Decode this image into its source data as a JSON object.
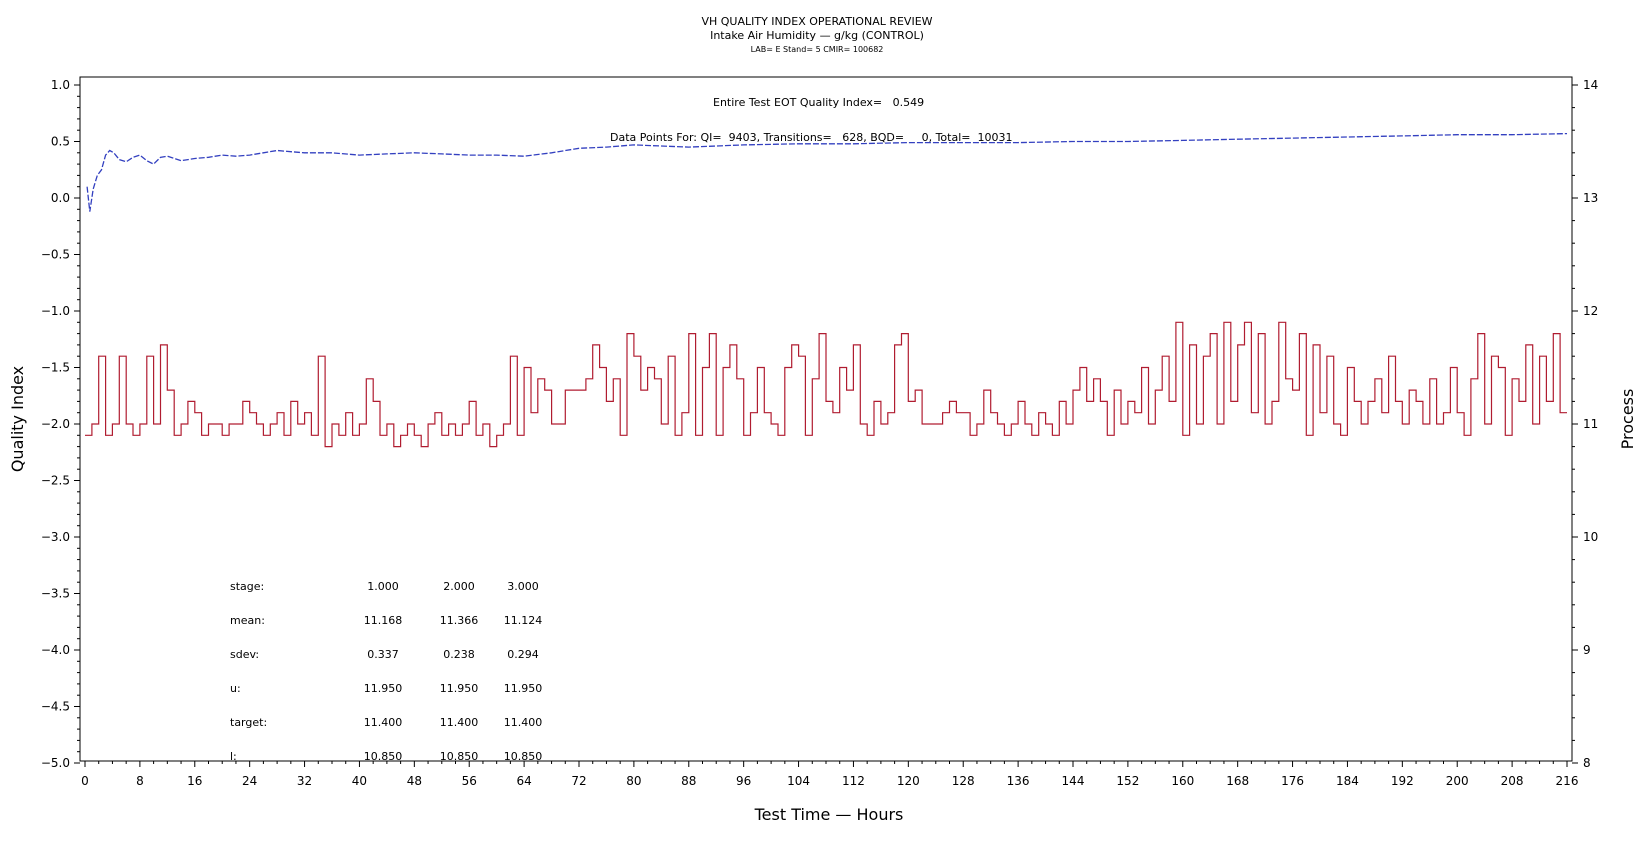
{
  "title": "VH QUALITY INDEX OPERATIONAL REVIEW",
  "subtitle": "Intake Air Humidity — g/kg (CONTROL)",
  "info_line": "LAB= E Stand= 5 CMIR= 100682",
  "annotations": {
    "eot": "Entire Test EOT Quality Index=   0.549",
    "points": "Data Points For: QI=  9403, Transitions=   628, BQD=     0, Total=  10031"
  },
  "stats_table": {
    "rows": [
      {
        "label": "stage:",
        "values": [
          "1.000",
          "2.000",
          "3.000"
        ]
      },
      {
        "label": "mean:",
        "values": [
          "11.168",
          "11.366",
          "11.124"
        ]
      },
      {
        "label": "sdev:",
        "values": [
          "0.337",
          "0.238",
          "0.294"
        ]
      },
      {
        "label": "u:",
        "values": [
          "11.950",
          "11.950",
          "11.950"
        ]
      },
      {
        "label": "target:",
        "values": [
          "11.400",
          "11.400",
          "11.400"
        ]
      },
      {
        "label": "l:",
        "values": [
          "10.850",
          "10.850",
          "10.850"
        ]
      }
    ]
  },
  "chart_data": {
    "type": "line",
    "title": "VH QUALITY INDEX OPERATIONAL REVIEW",
    "subtitle": "Intake Air Humidity — g/kg (CONTROL)",
    "xlabel": "Test Time — Hours",
    "ylabel": "Quality Index",
    "y2label": "Process",
    "xlim": [
      0,
      216
    ],
    "ylim": [
      -5.0,
      1.0
    ],
    "y2lim": [
      8,
      14
    ],
    "x_ticks": [
      "0",
      "8",
      "16",
      "24",
      "32",
      "40",
      "48",
      "56",
      "64",
      "72",
      "80",
      "88",
      "96",
      "104",
      "112",
      "120",
      "128",
      "136",
      "144",
      "152",
      "160",
      "168",
      "176",
      "184",
      "192",
      "200",
      "208",
      "216"
    ],
    "y_ticks": [
      "−5.0",
      "−4.5",
      "−4.0",
      "−3.5",
      "−3.0",
      "−2.5",
      "−2.0",
      "−1.5",
      "−1.0",
      "−0.5",
      "0.0",
      "0.5",
      "1.0"
    ],
    "y2_ticks": [
      "8",
      "9",
      "10",
      "11",
      "12",
      "13",
      "14"
    ],
    "grid": false,
    "colors": {
      "quality_index": "#3340c0",
      "process": "#b01c30"
    },
    "series": [
      {
        "axis": "left",
        "color": "#3340c0",
        "x": [
          0.3,
          0.7,
          1.2,
          1.8,
          2.4,
          3.0,
          3.6,
          4.2,
          5,
          6,
          7,
          8,
          9,
          10,
          11,
          12,
          14,
          16,
          18,
          20,
          22,
          24,
          26,
          28,
          30,
          32,
          36,
          40,
          44,
          48,
          52,
          56,
          60,
          64,
          68,
          72,
          76,
          80,
          84,
          88,
          92,
          96,
          104,
          112,
          120,
          128,
          136,
          144,
          152,
          160,
          168,
          176,
          184,
          192,
          200,
          208,
          216
        ],
        "y": [
          0.1,
          -0.12,
          0.08,
          0.2,
          0.25,
          0.38,
          0.42,
          0.4,
          0.34,
          0.32,
          0.36,
          0.38,
          0.33,
          0.3,
          0.36,
          0.37,
          0.33,
          0.35,
          0.36,
          0.38,
          0.37,
          0.38,
          0.4,
          0.42,
          0.41,
          0.4,
          0.4,
          0.38,
          0.39,
          0.4,
          0.39,
          0.38,
          0.38,
          0.37,
          0.4,
          0.44,
          0.45,
          0.47,
          0.46,
          0.45,
          0.46,
          0.47,
          0.48,
          0.48,
          0.49,
          0.49,
          0.49,
          0.5,
          0.5,
          0.51,
          0.52,
          0.53,
          0.54,
          0.55,
          0.56,
          0.56,
          0.57
        ]
      },
      {
        "axis": "right",
        "color": "#b01c30",
        "x": [
          0,
          1,
          2,
          3,
          4,
          5,
          6,
          7,
          8,
          9,
          10,
          11,
          12,
          13,
          14,
          15,
          16,
          17,
          18,
          19,
          20,
          21,
          22,
          23,
          24,
          25,
          26,
          27,
          28,
          29,
          30,
          31,
          32,
          33,
          34,
          35,
          36,
          37,
          38,
          39,
          40,
          41,
          42,
          43,
          44,
          45,
          46,
          47,
          48,
          49,
          50,
          51,
          52,
          53,
          54,
          55,
          56,
          57,
          58,
          59,
          60,
          61,
          62,
          63,
          64,
          65,
          66,
          67,
          68,
          69,
          70,
          71,
          72,
          73,
          74,
          75,
          76,
          77,
          78,
          79,
          80,
          81,
          82,
          83,
          84,
          85,
          86,
          87,
          88,
          89,
          90,
          91,
          92,
          93,
          94,
          95,
          96,
          97,
          98,
          99,
          100,
          101,
          102,
          103,
          104,
          105,
          106,
          107,
          108,
          109,
          110,
          111,
          112,
          113,
          114,
          115,
          116,
          117,
          118,
          119,
          120,
          121,
          122,
          123,
          124,
          125,
          126,
          127,
          128,
          129,
          130,
          131,
          132,
          133,
          134,
          135,
          136,
          137,
          138,
          139,
          140,
          141,
          142,
          143,
          144,
          145,
          146,
          147,
          148,
          149,
          150,
          151,
          152,
          153,
          154,
          155,
          156,
          157,
          158,
          159,
          160,
          161,
          162,
          163,
          164,
          165,
          166,
          167,
          168,
          169,
          170,
          171,
          172,
          173,
          174,
          175,
          176,
          177,
          178,
          179,
          180,
          181,
          182,
          183,
          184,
          185,
          186,
          187,
          188,
          189,
          190,
          191,
          192,
          193,
          194,
          195,
          196,
          197,
          198,
          199,
          200,
          201,
          202,
          203,
          204,
          205,
          206,
          207,
          208,
          209,
          210,
          211,
          212,
          213,
          214,
          215
        ],
        "y": [
          10.9,
          11.0,
          11.6,
          10.9,
          11.0,
          11.6,
          11.0,
          10.9,
          11.0,
          11.6,
          11.0,
          11.7,
          11.3,
          10.9,
          11.0,
          11.2,
          11.1,
          10.9,
          11.0,
          11.0,
          10.9,
          11.0,
          11.0,
          11.2,
          11.1,
          11.0,
          10.9,
          11.0,
          11.1,
          10.9,
          11.2,
          11.0,
          11.1,
          10.9,
          11.6,
          10.8,
          11.0,
          10.9,
          11.1,
          10.9,
          11.0,
          11.4,
          11.2,
          10.9,
          11.0,
          10.8,
          10.9,
          11.0,
          10.9,
          10.8,
          11.0,
          11.1,
          10.9,
          11.0,
          10.9,
          11.0,
          11.2,
          10.9,
          11.0,
          10.8,
          10.9,
          11.0,
          11.6,
          10.9,
          11.5,
          11.1,
          11.4,
          11.3,
          11.0,
          11.0,
          11.3,
          11.3,
          11.3,
          11.4,
          11.7,
          11.5,
          11.2,
          11.4,
          10.9,
          11.8,
          11.6,
          11.3,
          11.5,
          11.4,
          11.0,
          11.6,
          10.9,
          11.1,
          11.8,
          10.9,
          11.5,
          11.8,
          10.9,
          11.5,
          11.7,
          11.4,
          10.9,
          11.1,
          11.5,
          11.1,
          11.0,
          10.9,
          11.5,
          11.7,
          11.6,
          10.9,
          11.4,
          11.8,
          11.2,
          11.1,
          11.5,
          11.3,
          11.7,
          11.0,
          10.9,
          11.2,
          11.0,
          11.1,
          11.7,
          11.8,
          11.2,
          11.3,
          11.0,
          11.0,
          11.0,
          11.1,
          11.2,
          11.1,
          11.1,
          10.9,
          11.0,
          11.3,
          11.1,
          11.0,
          10.9,
          11.0,
          11.2,
          11.0,
          10.9,
          11.1,
          11.0,
          10.9,
          11.2,
          11.0,
          11.3,
          11.5,
          11.2,
          11.4,
          11.2,
          10.9,
          11.3,
          11.0,
          11.2,
          11.1,
          11.5,
          11.0,
          11.3,
          11.6,
          11.2,
          11.9,
          10.9,
          11.7,
          11.0,
          11.6,
          11.8,
          11.0,
          11.9,
          11.2,
          11.7,
          11.9,
          11.1,
          11.8,
          11.0,
          11.2,
          11.9,
          11.4,
          11.3,
          11.8,
          10.9,
          11.7,
          11.1,
          11.6,
          11.0,
          10.9,
          11.5,
          11.2,
          11.0,
          11.2,
          11.4,
          11.1,
          11.6,
          11.2,
          11.0,
          11.3,
          11.2,
          11.0,
          11.4,
          11.0,
          11.1,
          11.5,
          11.1,
          10.9,
          11.4,
          11.8,
          11.0,
          11.6,
          11.5,
          10.9,
          11.4,
          11.2,
          11.7,
          11.0,
          11.6,
          11.2,
          11.8,
          11.1
        ]
      }
    ]
  }
}
